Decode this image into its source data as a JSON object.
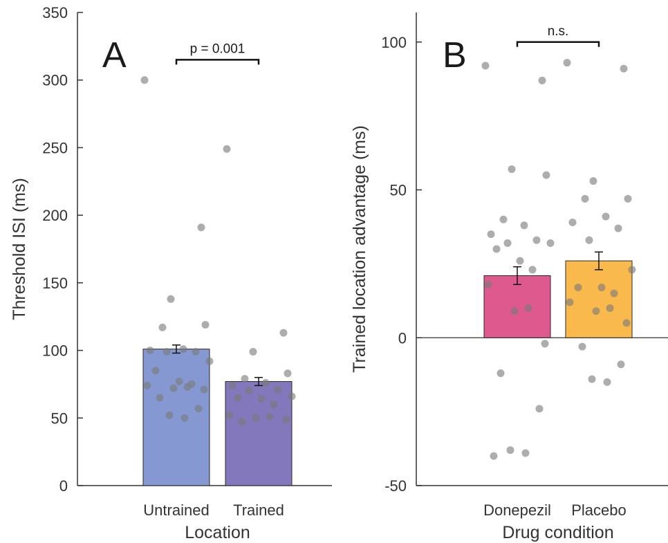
{
  "chart_data": [
    {
      "panel": "A",
      "type": "bar",
      "xlabel": "Location",
      "ylabel": "Threshold ISI (ms)",
      "ylim": [
        0,
        350
      ],
      "yticks": [
        0,
        50,
        100,
        150,
        200,
        250,
        300,
        350
      ],
      "categories": [
        "Untrained",
        "Trained"
      ],
      "values": [
        101,
        77
      ],
      "errors": [
        3,
        3
      ],
      "colors": [
        "#8598d2",
        "#8278bb"
      ],
      "significance": {
        "label": "p = 0.001",
        "y": 315
      },
      "points": [
        [
          300,
          191,
          138,
          119,
          117,
          101,
          100,
          99,
          99,
          92,
          85,
          77,
          75,
          74,
          73,
          72,
          71,
          65,
          57,
          52,
          50
        ],
        [
          249,
          113,
          99,
          83,
          79,
          76,
          74,
          71,
          70,
          66,
          65,
          64,
          60,
          52,
          51,
          50,
          49,
          47
        ]
      ],
      "grid": false
    },
    {
      "panel": "B",
      "type": "bar",
      "xlabel": "Drug condition",
      "ylabel": "Trained location advantage (ms)",
      "ylim": [
        -50,
        110
      ],
      "yticks": [
        -50,
        0,
        50,
        100
      ],
      "categories": [
        "Donepezil",
        "Placebo"
      ],
      "values": [
        21,
        26
      ],
      "errors": [
        3,
        3
      ],
      "colors": [
        "#de5a8e",
        "#f9b94d"
      ],
      "significance": {
        "label": "n.s.",
        "y": 100
      },
      "points": [
        [
          92,
          87,
          57,
          55,
          40,
          38,
          35,
          33,
          32,
          32,
          30,
          26,
          23,
          18,
          10,
          9,
          -2,
          -12,
          -24,
          -38,
          -39,
          -40
        ],
        [
          93,
          91,
          53,
          47,
          47,
          41,
          39,
          37,
          33,
          23,
          17,
          17,
          15,
          12,
          10,
          9,
          5,
          -3,
          -9,
          -14,
          -15
        ]
      ],
      "grid": false
    }
  ]
}
